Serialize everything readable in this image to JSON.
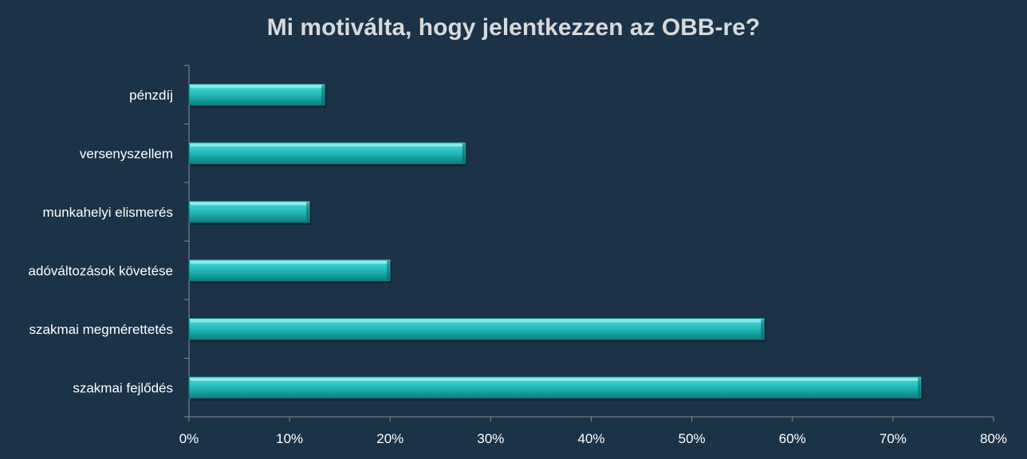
{
  "chart_data": {
    "type": "bar",
    "orientation": "horizontal",
    "title": "Mi motiválta, hogy jelentkezzen az OBB-re?",
    "categories": [
      "pénzdíj",
      "versenyszellem",
      "munkahelyi elismerés",
      "adóváltozások követése",
      "szakmai megmérettetés",
      "szakmai fejlődés"
    ],
    "series": [
      {
        "values": [
          13.5,
          27.5,
          12,
          20,
          57.2,
          72.8
        ]
      }
    ],
    "xlim": [
      0,
      80
    ],
    "xticks": [
      "0%",
      "10%",
      "20%",
      "30%",
      "40%",
      "50%",
      "60%",
      "70%",
      "80%"
    ],
    "grid": false,
    "legend": "none",
    "colors": {
      "bar": "#20b5b5",
      "bar_light": "#6fe4e4",
      "bar_dark": "#0e6f72",
      "background": "#1c3247",
      "axis": "#8c8c8c"
    }
  }
}
